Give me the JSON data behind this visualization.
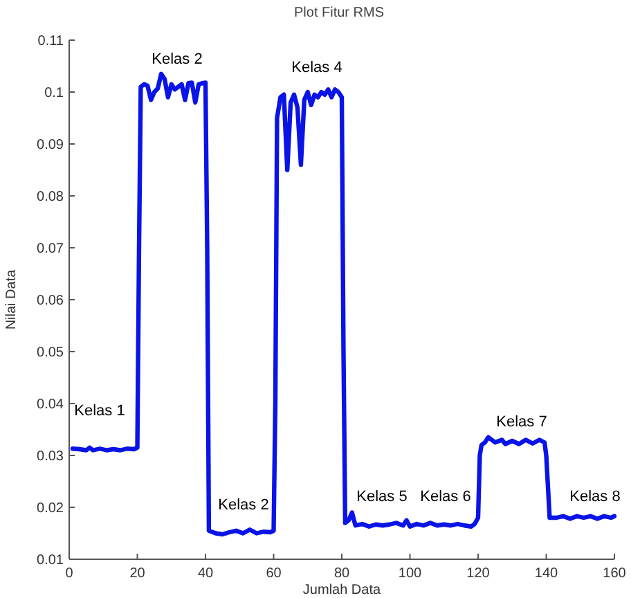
{
  "chart_data": {
    "type": "line",
    "title": "Plot Fitur RMS",
    "xlabel": "Jumlah Data",
    "ylabel": "Nilai Data",
    "xlim": [
      0,
      160
    ],
    "xticks": [
      0,
      20,
      40,
      60,
      80,
      100,
      120,
      140,
      160
    ],
    "ylim": [
      0.01,
      0.11
    ],
    "yticks": [
      0.01,
      0.02,
      0.03,
      0.04,
      0.05,
      0.06,
      0.07,
      0.08,
      0.09,
      0.1,
      0.11
    ],
    "grid": false,
    "marker": "none",
    "line_style": "solid",
    "series": [
      {
        "color": "#0a14e6",
        "x": [
          1,
          3,
          5,
          6,
          7,
          9,
          11,
          13,
          15,
          17,
          19,
          20,
          20.5,
          21,
          22,
          23,
          24,
          25,
          26,
          27,
          28,
          29,
          30,
          31,
          32,
          33,
          34,
          35,
          36,
          37,
          38,
          39,
          40,
          40.5,
          41,
          43,
          45,
          47,
          49,
          51,
          53,
          55,
          57,
          59,
          60,
          60.5,
          61,
          62,
          63,
          64,
          65,
          66,
          67,
          68,
          69,
          70,
          71,
          72,
          73,
          74,
          75,
          76,
          77,
          78,
          79,
          80,
          80.5,
          81,
          82,
          83,
          84,
          86,
          88,
          90,
          92,
          94,
          96,
          98,
          99,
          100,
          102,
          104,
          106,
          108,
          110,
          112,
          114,
          116,
          118,
          119,
          120,
          120.5,
          121,
          122,
          123,
          125,
          127,
          128,
          130,
          132,
          134,
          136,
          138,
          139.5,
          140,
          141,
          143,
          145,
          147,
          149,
          151,
          153,
          155,
          157,
          159,
          160
        ],
        "values": [
          0.0313,
          0.0312,
          0.031,
          0.0315,
          0.031,
          0.0313,
          0.031,
          0.0312,
          0.031,
          0.0313,
          0.0312,
          0.0315,
          0.07,
          0.101,
          0.1015,
          0.1012,
          0.0985,
          0.1,
          0.1007,
          0.1035,
          0.1025,
          0.099,
          0.1015,
          0.1005,
          0.101,
          0.1015,
          0.0985,
          0.1017,
          0.1018,
          0.098,
          0.1015,
          0.1017,
          0.1018,
          0.07,
          0.0155,
          0.015,
          0.0148,
          0.0152,
          0.0155,
          0.015,
          0.0157,
          0.015,
          0.0153,
          0.0152,
          0.0155,
          0.04,
          0.095,
          0.099,
          0.0995,
          0.085,
          0.098,
          0.0995,
          0.097,
          0.086,
          0.0985,
          0.1,
          0.0975,
          0.0995,
          0.099,
          0.1,
          0.0995,
          0.1005,
          0.099,
          0.1005,
          0.1,
          0.099,
          0.05,
          0.017,
          0.0175,
          0.019,
          0.0165,
          0.0168,
          0.0163,
          0.0167,
          0.0165,
          0.0167,
          0.017,
          0.0165,
          0.0175,
          0.0163,
          0.0168,
          0.0165,
          0.017,
          0.0165,
          0.0167,
          0.0165,
          0.0168,
          0.0165,
          0.0163,
          0.0168,
          0.018,
          0.03,
          0.032,
          0.0325,
          0.0335,
          0.0325,
          0.033,
          0.0322,
          0.0328,
          0.0322,
          0.033,
          0.0323,
          0.033,
          0.0325,
          0.03,
          0.018,
          0.018,
          0.0183,
          0.0178,
          0.0183,
          0.018,
          0.0183,
          0.0178,
          0.0183,
          0.018,
          0.0183
        ]
      }
    ],
    "annotations": [
      "Kelas 1",
      "Kelas 2",
      "Kelas 2",
      "Kelas 4",
      "Kelas 5",
      "Kelas 6",
      "Kelas 7",
      "Kelas 8"
    ]
  }
}
